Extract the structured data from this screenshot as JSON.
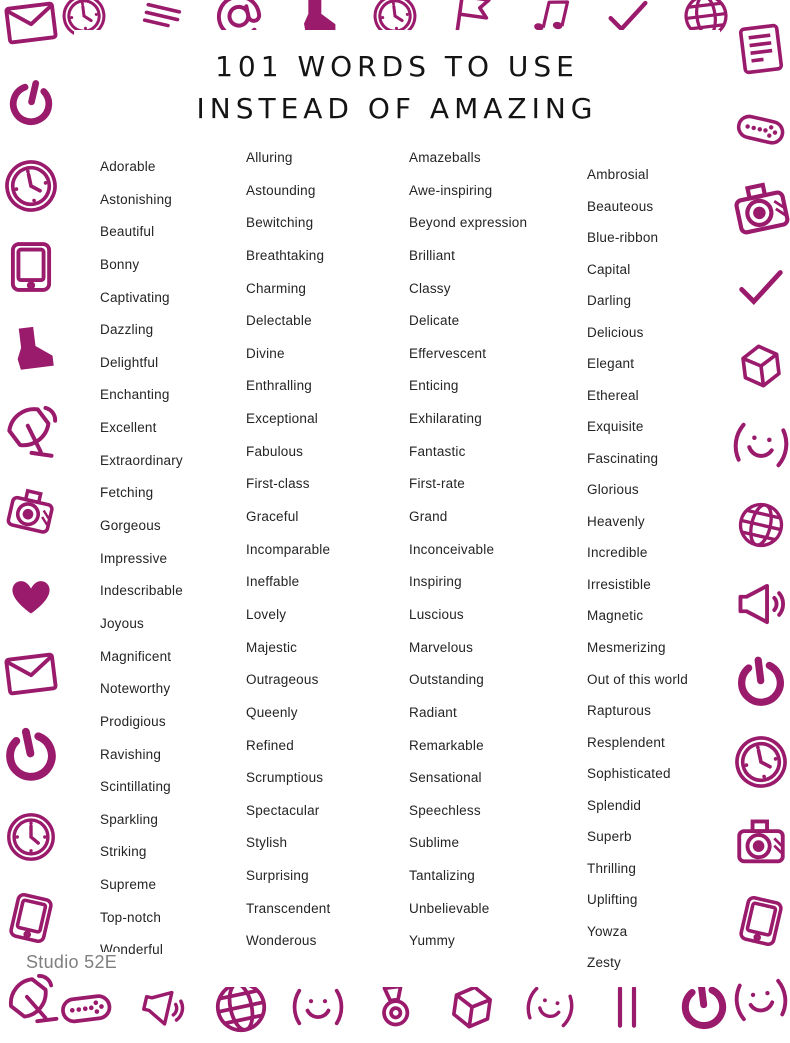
{
  "page": {
    "title_line1": "101 WORDS TO USE",
    "title_line2": "INSTEAD OF AMAZING",
    "footer": "Studio 52E"
  },
  "colors": {
    "accent": "#9a1a6c",
    "text": "#242424",
    "title_text": "#141414",
    "footer_text": "#7f7f7f",
    "background": "#ffffff"
  },
  "columns": [
    {
      "words": [
        "Adorable",
        "Astonishing",
        "Beautiful",
        "Bonny",
        "Captivating",
        "Dazzling",
        "Delightful",
        "Enchanting",
        "Excellent",
        "Extraordinary",
        "Fetching",
        "Gorgeous",
        "Impressive",
        "Indescribable",
        "Joyous",
        "Magnificent",
        "Noteworthy",
        "Prodigious",
        "Ravishing",
        "Scintillating",
        "Sparkling",
        "Striking",
        "Supreme",
        "Top-notch",
        "Wonderful"
      ]
    },
    {
      "words": [
        "Alluring",
        "Astounding",
        "Bewitching",
        "Breathtaking",
        "Charming",
        "Delectable",
        "Divine",
        "Enthralling",
        "Exceptional",
        "Fabulous",
        "First-class",
        "Graceful",
        "Incomparable",
        "Ineffable",
        "Lovely",
        "Majestic",
        "Outrageous",
        "Queenly",
        "Refined",
        "Scrumptious",
        "Spectacular",
        "Stylish",
        "Surprising",
        "Transcendent",
        "Wonderous"
      ]
    },
    {
      "words": [
        "Amazeballs",
        "Awe-inspiring",
        "Beyond expression",
        "Brilliant",
        "Classy",
        "Delicate",
        "Effervescent",
        "Enticing",
        "Exhilarating",
        "Fantastic",
        "First-rate",
        "Grand",
        "Inconceivable",
        "Inspiring",
        "Luscious",
        "Marvelous",
        "Outstanding",
        "Radiant",
        "Remarkable",
        "Sensational",
        "Speechless",
        "Sublime",
        "Tantalizing",
        "Unbelievable",
        "Yummy"
      ]
    },
    {
      "words": [
        "Ambrosial",
        "Beauteous",
        "Blue-ribbon",
        "Capital",
        "Darling",
        "Delicious",
        "Elegant",
        "Ethereal",
        "Exquisite",
        "Fascinating",
        "Glorious",
        "Heavenly",
        "Incredible",
        "Irresistible",
        "Magnetic",
        "Mesmerizing",
        "Out of this world",
        "Rapturous",
        "Resplendent",
        "Sophisticated",
        "Splendid",
        "Superb",
        "Thrilling",
        "Uplifting",
        "Yowza",
        "Zesty"
      ]
    }
  ],
  "border": {
    "top": [
      "clock-icon",
      "lines-icon",
      "at-icon",
      "boot-icon",
      "clock-icon",
      "ribbon-icon",
      "music-note-icon",
      "check-icon",
      "globe-icon"
    ],
    "bottom": [
      "controller-icon",
      "megaphone-icon",
      "globe-icon",
      "smiley-icon",
      "medal-icon",
      "cube-icon",
      "smiley-icon",
      "bars-icon",
      "power-icon"
    ],
    "left": [
      "envelope-icon",
      "power-icon",
      "clock-icon",
      "tablet-icon",
      "boot-icon",
      "satellite-icon",
      "camera-icon",
      "heart-icon",
      "envelope-icon",
      "power-icon",
      "clock-icon",
      "tablet-icon",
      "satellite-icon"
    ],
    "right": [
      "monitor-icon",
      "controller-icon",
      "camera-icon",
      "check-icon",
      "cube-icon",
      "smiley-icon",
      "globe-icon",
      "megaphone-icon",
      "power-icon",
      "clock-icon",
      "camera-icon",
      "tablet-icon",
      "smiley-icon"
    ]
  }
}
